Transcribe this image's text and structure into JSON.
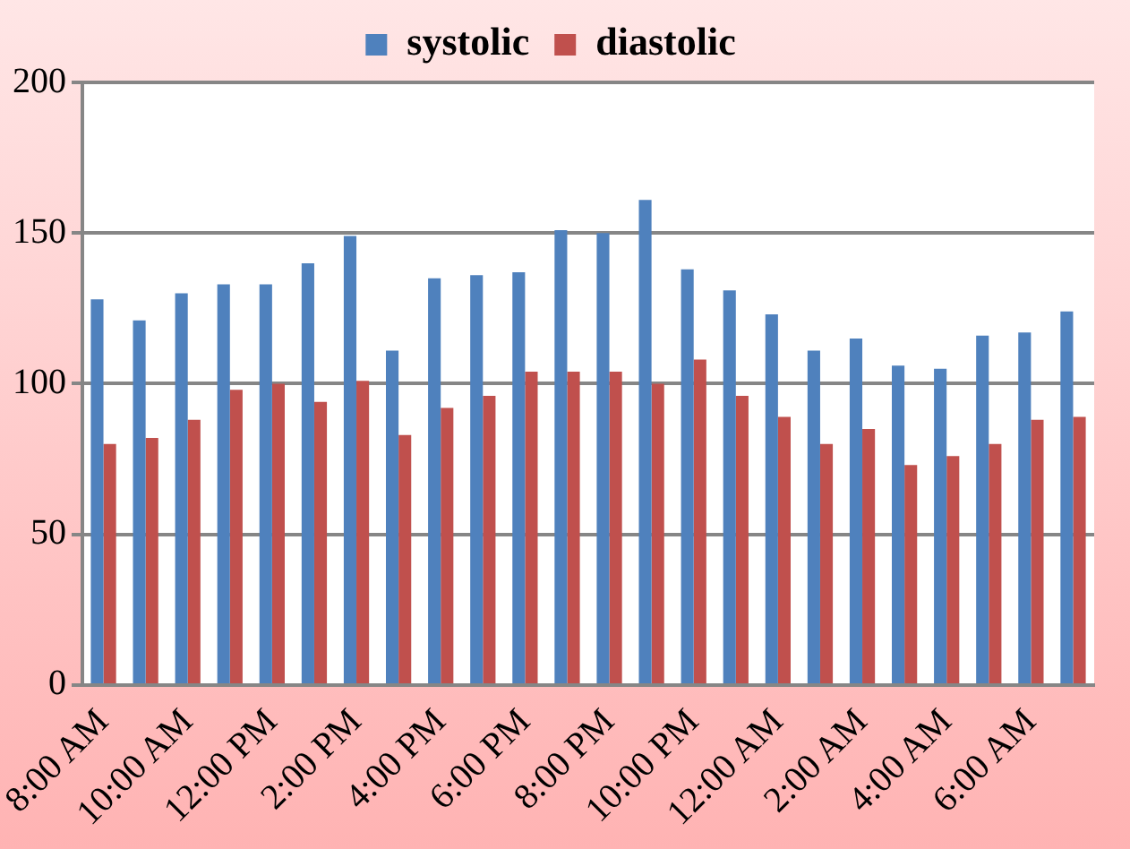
{
  "chart_data": {
    "type": "bar",
    "categories": [
      "8:00 AM",
      null,
      "10:00 AM",
      null,
      "12:00 PM",
      null,
      "2:00 PM",
      null,
      "4:00 PM",
      null,
      "6:00 PM",
      null,
      "8:00 PM",
      null,
      "10:00 PM",
      null,
      "12:00 AM",
      null,
      "2:00 AM",
      null,
      "4:00 AM",
      null,
      "6:00 AM",
      null
    ],
    "series": [
      {
        "name": "systolic",
        "color": "#4f81bd",
        "values": [
          128,
          121,
          130,
          133,
          133,
          140,
          149,
          111,
          135,
          136,
          137,
          151,
          150,
          161,
          138,
          131,
          123,
          111,
          115,
          106,
          105,
          116,
          117,
          124
        ]
      },
      {
        "name": "diastolic",
        "color": "#c0504d",
        "values": [
          80,
          82,
          88,
          98,
          100,
          94,
          101,
          83,
          92,
          96,
          104,
          104,
          104,
          100,
          108,
          96,
          89,
          80,
          85,
          73,
          76,
          80,
          88,
          89
        ]
      }
    ],
    "ylim": [
      0,
      200
    ],
    "yticks": [
      0,
      50,
      100,
      150,
      200
    ],
    "grid": "y",
    "legend": "top"
  }
}
